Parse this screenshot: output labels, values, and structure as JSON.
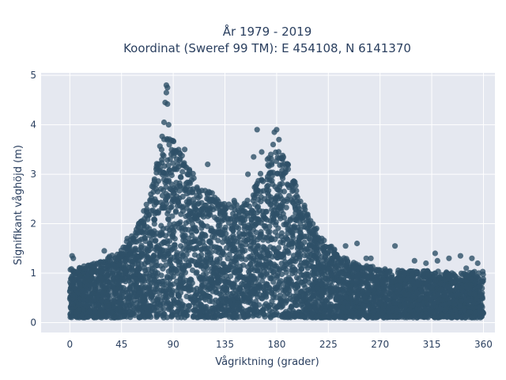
{
  "chart_data": {
    "type": "scatter",
    "title_line1": "År 1979 - 2019",
    "title_line2": "Koordinat (Sweref 99 TM): E 454108, N 6141370",
    "xlabel": "Vågriktning (grader)",
    "ylabel": "Signifikant våghöjd (m)",
    "xlim": [
      -25,
      370
    ],
    "ylim": [
      -0.2,
      5.05
    ],
    "xticks": [
      0,
      45,
      90,
      135,
      180,
      225,
      270,
      315,
      360
    ],
    "yticks": [
      0,
      1,
      2,
      3,
      4,
      5
    ],
    "marker_color": "#2e5068",
    "background_color": "#e5e8f0",
    "grid": true,
    "legend": "none",
    "envelope": {
      "x": [
        0,
        15,
        30,
        45,
        60,
        70,
        75,
        80,
        85,
        90,
        95,
        100,
        110,
        120,
        130,
        140,
        150,
        160,
        165,
        170,
        175,
        180,
        185,
        190,
        195,
        200,
        210,
        220,
        230,
        240,
        250,
        270,
        290,
        315,
        340,
        360
      ],
      "y_max": [
        1.1,
        1.15,
        1.3,
        1.5,
        2.0,
        2.6,
        3.2,
        3.8,
        3.9,
        3.7,
        3.5,
        3.3,
        2.9,
        2.7,
        2.5,
        2.5,
        2.4,
        2.7,
        3.0,
        3.2,
        3.4,
        3.5,
        3.4,
        3.2,
        2.9,
        2.6,
        2.1,
        1.7,
        1.5,
        1.3,
        1.2,
        1.1,
        1.05,
        1.05,
        1.0,
        1.05
      ],
      "y_min": [
        0.1,
        0.1,
        0.1,
        0.1,
        0.1,
        0.1,
        0.1,
        0.1,
        0.1,
        0.1,
        0.1,
        0.1,
        0.1,
        0.1,
        0.1,
        0.1,
        0.1,
        0.1,
        0.1,
        0.1,
        0.1,
        0.1,
        0.1,
        0.1,
        0.1,
        0.1,
        0.1,
        0.1,
        0.1,
        0.1,
        0.1,
        0.1,
        0.1,
        0.1,
        0.1,
        0.1
      ]
    },
    "outliers": {
      "x": [
        84,
        85,
        84,
        83,
        85,
        82,
        86,
        120,
        100,
        163,
        167,
        172,
        178,
        180,
        182,
        177,
        175,
        185,
        190,
        160,
        155,
        240,
        250,
        258,
        262,
        283,
        300,
        310,
        318,
        320,
        330,
        340,
        345,
        350,
        355,
        2,
        3,
        30,
        50,
        60,
        65,
        70
      ],
      "y": [
        4.8,
        4.75,
        4.65,
        4.45,
        4.42,
        4.05,
        4.0,
        3.2,
        3.5,
        3.9,
        3.45,
        3.3,
        3.85,
        3.9,
        3.7,
        3.6,
        3.4,
        3.3,
        3.1,
        3.35,
        3.0,
        1.55,
        1.6,
        1.3,
        1.3,
        1.55,
        1.25,
        1.2,
        1.4,
        1.25,
        1.3,
        1.35,
        1.1,
        1.3,
        1.2,
        1.35,
        1.3,
        1.45,
        1.7,
        2.0,
        2.1,
        2.45
      ]
    }
  }
}
